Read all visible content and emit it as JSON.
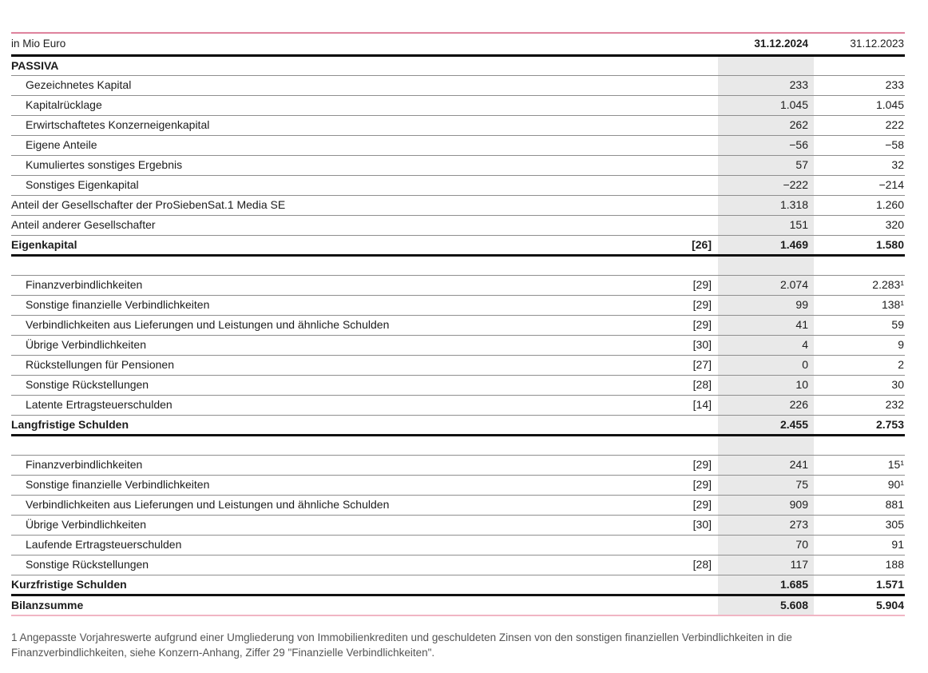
{
  "header": {
    "unit_label": "in Mio Euro",
    "col_2024": "31.12.2024",
    "col_2023": "31.12.2023"
  },
  "colors": {
    "accent_line": "#cc4d73",
    "accent_line_light": "#f0b5c4",
    "shaded_column_bg": "#e9e9e9",
    "row_separator": "#8f8f8f",
    "heavy_rule": "#111111",
    "text": "#1c1c1c",
    "footnote": "#545454"
  },
  "table": {
    "rows": [
      {
        "type": "section",
        "label": "PASSIVA",
        "note": "",
        "v2024": "",
        "v2023": ""
      },
      {
        "type": "indent",
        "label": "Gezeichnetes Kapital",
        "note": "",
        "v2024": "233",
        "v2023": "233"
      },
      {
        "type": "indent",
        "label": "Kapitalrücklage",
        "note": "",
        "v2024": "1.045",
        "v2023": "1.045"
      },
      {
        "type": "indent",
        "label": "Erwirtschaftetes Konzerneigenkapital",
        "note": "",
        "v2024": "262",
        "v2023": "222"
      },
      {
        "type": "indent",
        "label": "Eigene Anteile",
        "note": "",
        "v2024": "−56",
        "v2023": "−58"
      },
      {
        "type": "indent",
        "label": "Kumuliertes sonstiges Ergebnis",
        "note": "",
        "v2024": "57",
        "v2023": "32"
      },
      {
        "type": "indent",
        "label": "Sonstiges Eigenkapital",
        "note": "",
        "v2024": "−222",
        "v2023": "−214"
      },
      {
        "type": "plain",
        "label": "Anteil der Gesellschafter der ProSiebenSat.1 Media SE",
        "note": "",
        "v2024": "1.318",
        "v2023": "1.260"
      },
      {
        "type": "plain",
        "label": "Anteil anderer Gesellschafter",
        "note": "",
        "v2024": "151",
        "v2023": "320"
      },
      {
        "type": "total",
        "label": "Eigenkapital",
        "note": "[26]",
        "v2024": "1.469",
        "v2023": "1.580"
      },
      {
        "type": "spacer",
        "label": "",
        "note": "",
        "v2024": "",
        "v2023": ""
      },
      {
        "type": "indent",
        "label": "Finanzverbindlichkeiten",
        "note": "[29]",
        "v2024": "2.074",
        "v2023": "2.283¹"
      },
      {
        "type": "indent",
        "label": "Sonstige finanzielle Verbindlichkeiten",
        "note": "[29]",
        "v2024": "99",
        "v2023": "138¹"
      },
      {
        "type": "indent",
        "label": "Verbindlichkeiten aus Lieferungen und Leistungen und ähnliche Schulden",
        "note": "[29]",
        "v2024": "41",
        "v2023": "59"
      },
      {
        "type": "indent",
        "label": "Übrige Verbindlichkeiten",
        "note": "[30]",
        "v2024": "4",
        "v2023": "9"
      },
      {
        "type": "indent",
        "label": "Rückstellungen für Pensionen",
        "note": "[27]",
        "v2024": "0",
        "v2023": "2"
      },
      {
        "type": "indent",
        "label": "Sonstige Rückstellungen",
        "note": "[28]",
        "v2024": "10",
        "v2023": "30"
      },
      {
        "type": "indent",
        "label": "Latente Ertragsteuerschulden",
        "note": "[14]",
        "v2024": "226",
        "v2023": "232"
      },
      {
        "type": "total",
        "label": "Langfristige Schulden",
        "note": "",
        "v2024": "2.455",
        "v2023": "2.753"
      },
      {
        "type": "spacer",
        "label": "",
        "note": "",
        "v2024": "",
        "v2023": ""
      },
      {
        "type": "indent",
        "label": "Finanzverbindlichkeiten",
        "note": "[29]",
        "v2024": "241",
        "v2023": "15¹"
      },
      {
        "type": "indent",
        "label": "Sonstige finanzielle Verbindlichkeiten",
        "note": "[29]",
        "v2024": "75",
        "v2023": "90¹"
      },
      {
        "type": "indent",
        "label": "Verbindlichkeiten aus Lieferungen und Leistungen und ähnliche Schulden",
        "note": "[29]",
        "v2024": "909",
        "v2023": "881"
      },
      {
        "type": "indent",
        "label": "Übrige Verbindlichkeiten",
        "note": "[30]",
        "v2024": "273",
        "v2023": "305"
      },
      {
        "type": "indent",
        "label": "Laufende Ertragsteuerschulden",
        "note": "",
        "v2024": "70",
        "v2023": "91"
      },
      {
        "type": "indent",
        "label": "Sonstige Rückstellungen",
        "note": "[28]",
        "v2024": "117",
        "v2023": "188"
      },
      {
        "type": "total",
        "label": "Kurzfristige Schulden",
        "note": "",
        "v2024": "1.685",
        "v2023": "1.571"
      },
      {
        "type": "grand",
        "label": "Bilanzsumme",
        "note": "",
        "v2024": "5.608",
        "v2023": "5.904"
      }
    ]
  },
  "footnote": "1 Angepasste Vorjahreswerte aufgrund einer Umgliederung von Immobilienkrediten und geschuldeten Zinsen von den sonstigen finanziellen Verbindlichkeiten in die Finanzverbindlichkeiten, siehe Konzern-Anhang, Ziffer 29 \"Finanzielle Verbindlichkeiten\"."
}
